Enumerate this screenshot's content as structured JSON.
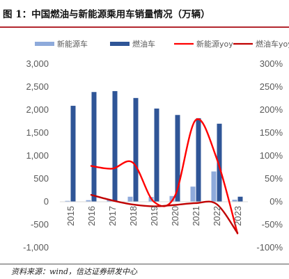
{
  "header": {
    "title": "图 1：中国燃油与新能源乘用车销量情况（万辆）"
  },
  "footer": {
    "source": "资料来源：wind，信达证券研发中心"
  },
  "chart_data": {
    "type": "bar",
    "title": "图 1：中国燃油与新能源乘用车销量情况（万辆）",
    "categories": [
      "2015",
      "2016",
      "2017",
      "2018",
      "2019",
      "2020",
      "2021",
      "2022",
      "2023"
    ],
    "left_axis": {
      "ylim": [
        -1000,
        3000
      ],
      "ticks": [
        -1000,
        -500,
        0,
        500,
        1000,
        1500,
        2000,
        2500,
        3000
      ],
      "tick_labels": [
        "-1,000",
        "-500",
        "0",
        "500",
        "1,000",
        "1,500",
        "2,000",
        "2,500",
        "3,000"
      ]
    },
    "right_axis": {
      "ylim": [
        -100,
        300
      ],
      "ticks": [
        -100,
        -50,
        0,
        50,
        100,
        150,
        200,
        250,
        300
      ],
      "tick_labels": [
        "-100%",
        "-50%",
        "0%",
        "50%",
        "100%",
        "150%",
        "200%",
        "250%",
        "300%"
      ]
    },
    "series": [
      {
        "name": "新能源车",
        "type": "bar",
        "axis": "left",
        "color": "#8eaadb",
        "values": [
          20,
          35,
          55,
          110,
          105,
          125,
          330,
          660,
          45
        ]
      },
      {
        "name": "燃油车",
        "type": "bar",
        "axis": "left",
        "color": "#2f5597",
        "values": [
          2090,
          2390,
          2410,
          2260,
          2030,
          1890,
          1820,
          1700,
          110
        ]
      },
      {
        "name": "新能源yoy",
        "type": "line",
        "axis": "right",
        "color": "#ff0000",
        "values": [
          null,
          78,
          72,
          85,
          0,
          12,
          178,
          95,
          -69
        ]
      },
      {
        "name": "燃油车yoy",
        "type": "line",
        "axis": "right",
        "color": "#c00000",
        "values": [
          null,
          15,
          3,
          -6,
          -10,
          -7,
          -3,
          -5,
          -68
        ]
      }
    ],
    "legend": {
      "position": "top",
      "items": [
        "新能源车",
        "燃油车",
        "新能源yoy",
        "燃油车yoy"
      ]
    },
    "grid": false
  }
}
